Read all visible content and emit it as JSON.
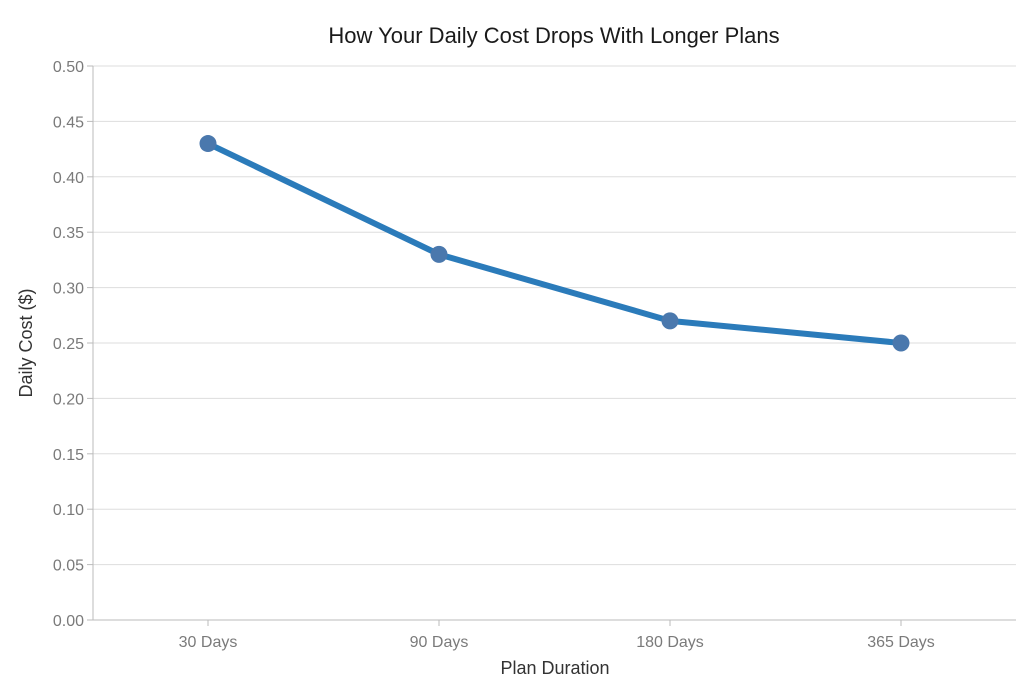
{
  "chart_data": {
    "type": "line",
    "title": "How Your Daily Cost Drops With Longer Plans",
    "xlabel": "Plan Duration",
    "ylabel": "Daily Cost ($)",
    "categories": [
      "30 Days",
      "90 Days",
      "180 Days",
      "365 Days"
    ],
    "series": [
      {
        "values": [
          0.43,
          0.33,
          0.27,
          0.25
        ]
      }
    ],
    "ylim": [
      0,
      0.5
    ],
    "yticks": [
      "0.00",
      "0.05",
      "0.10",
      "0.15",
      "0.20",
      "0.25",
      "0.30",
      "0.35",
      "0.40",
      "0.45",
      "0.50"
    ],
    "grid": "horizontal",
    "legend": "none",
    "colors": {
      "line": "#2b7bba",
      "point": "#4a78ad"
    }
  }
}
